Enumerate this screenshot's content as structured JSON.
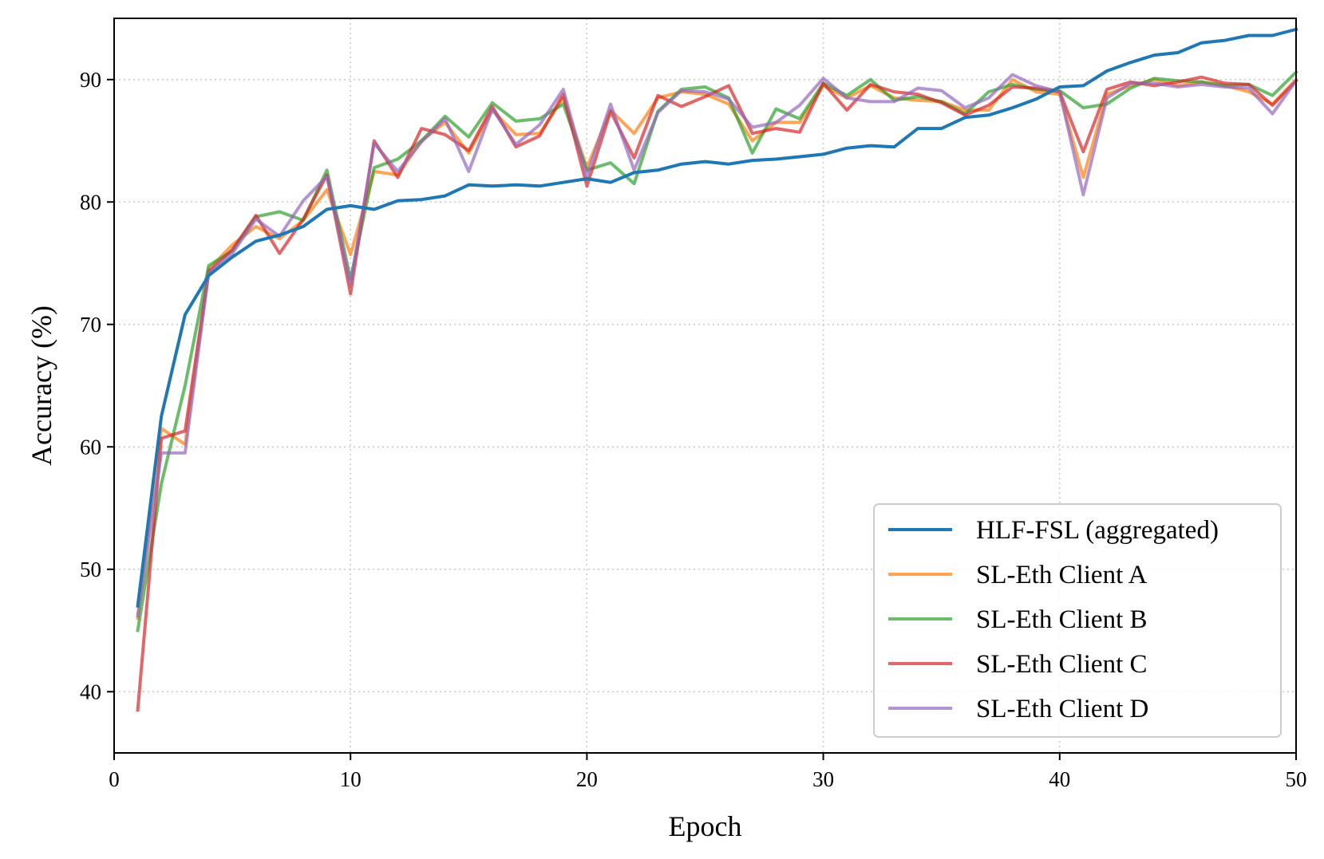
{
  "chart_data": {
    "type": "line",
    "title": "",
    "xlabel": "Epoch",
    "ylabel": "Accuracy (%)",
    "xlim": [
      0,
      50
    ],
    "ylim": [
      35,
      95
    ],
    "xticks": [
      0,
      10,
      20,
      30,
      40,
      50
    ],
    "yticks": [
      40,
      50,
      60,
      70,
      80,
      90
    ],
    "grid": true,
    "legend_position": "lower-right",
    "x": [
      1,
      2,
      3,
      4,
      5,
      6,
      7,
      8,
      9,
      10,
      11,
      12,
      13,
      14,
      15,
      16,
      17,
      18,
      19,
      20,
      21,
      22,
      23,
      24,
      25,
      26,
      27,
      28,
      29,
      30,
      31,
      32,
      33,
      34,
      35,
      36,
      37,
      38,
      39,
      40,
      41,
      42,
      43,
      44,
      45,
      46,
      47,
      48,
      49,
      50
    ],
    "series": [
      {
        "name": "HLF-FSL (aggregated)",
        "color": "#1f77b4",
        "opacity": 1.0,
        "values": [
          47.0,
          62.5,
          70.8,
          74.0,
          75.5,
          76.8,
          77.3,
          78.0,
          79.4,
          79.7,
          79.4,
          80.1,
          80.2,
          80.5,
          81.4,
          81.3,
          81.4,
          81.3,
          81.6,
          81.9,
          81.6,
          82.4,
          82.6,
          83.1,
          83.3,
          83.1,
          83.4,
          83.5,
          83.7,
          83.9,
          84.4,
          84.6,
          84.5,
          86.0,
          86.0,
          86.9,
          87.1,
          87.7,
          88.4,
          89.4,
          89.5,
          90.7,
          91.4,
          92.0,
          92.2,
          93.0,
          93.2,
          93.6,
          93.6,
          94.1
        ]
      },
      {
        "name": "SL-Eth Client A",
        "color": "#ff7f0e",
        "opacity": 0.7,
        "values": [
          46.0,
          61.5,
          60.2,
          74.5,
          76.5,
          78.0,
          77.0,
          78.5,
          81.0,
          75.7,
          82.5,
          82.2,
          85.0,
          86.5,
          84.0,
          87.5,
          85.5,
          85.6,
          88.5,
          82.8,
          87.5,
          85.6,
          88.5,
          89.0,
          88.8,
          88.0,
          85.0,
          86.5,
          86.5,
          89.5,
          88.5,
          89.5,
          88.5,
          88.3,
          88.2,
          87.5,
          87.5,
          90.0,
          89.0,
          88.8,
          82.0,
          88.8,
          89.5,
          90.0,
          89.5,
          89.8,
          89.5,
          89.0,
          88.0,
          90.0
        ]
      },
      {
        "name": "SL-Eth Client B",
        "color": "#2ca02c",
        "opacity": 0.7,
        "values": [
          45.0,
          57.0,
          65.0,
          74.8,
          76.0,
          78.8,
          79.2,
          78.5,
          82.6,
          73.7,
          82.8,
          83.5,
          85.0,
          87.0,
          85.3,
          88.1,
          86.6,
          86.8,
          88.0,
          82.6,
          83.2,
          81.5,
          87.4,
          89.2,
          89.4,
          88.5,
          84.0,
          87.6,
          86.8,
          89.7,
          88.7,
          90.0,
          88.3,
          88.6,
          88.2,
          87.2,
          89.0,
          89.6,
          89.2,
          89.1,
          87.7,
          88.0,
          89.3,
          90.1,
          89.9,
          89.8,
          89.5,
          89.6,
          88.7,
          90.6
        ]
      },
      {
        "name": "SL-Eth Client C",
        "color": "#d62728",
        "opacity": 0.7,
        "values": [
          38.5,
          60.7,
          61.3,
          74.3,
          76.1,
          78.9,
          75.8,
          78.6,
          82.2,
          72.5,
          85.0,
          82.0,
          86.0,
          85.5,
          84.2,
          87.8,
          84.5,
          85.4,
          88.8,
          81.3,
          87.4,
          83.6,
          88.7,
          87.8,
          88.6,
          89.5,
          85.6,
          86.0,
          85.7,
          89.7,
          87.5,
          89.6,
          89.0,
          88.8,
          88.1,
          87.1,
          87.9,
          89.4,
          89.3,
          89.0,
          84.1,
          89.2,
          89.8,
          89.5,
          89.8,
          90.2,
          89.7,
          89.6,
          87.9,
          89.9
        ]
      },
      {
        "name": "SL-Eth Client D",
        "color": "#9467bd",
        "opacity": 0.7,
        "values": [
          46.2,
          59.5,
          59.5,
          74.2,
          75.8,
          78.6,
          77.2,
          80.1,
          82.1,
          73.3,
          84.8,
          82.5,
          84.9,
          86.8,
          82.5,
          87.6,
          84.7,
          86.3,
          89.2,
          82.1,
          88.0,
          82.6,
          87.3,
          89.1,
          89.0,
          88.4,
          86.1,
          86.5,
          87.9,
          90.1,
          88.5,
          88.2,
          88.2,
          89.3,
          89.1,
          87.7,
          88.5,
          90.4,
          89.5,
          89.0,
          80.6,
          88.5,
          89.7,
          89.7,
          89.4,
          89.6,
          89.4,
          89.3,
          87.2,
          89.9
        ]
      }
    ]
  }
}
